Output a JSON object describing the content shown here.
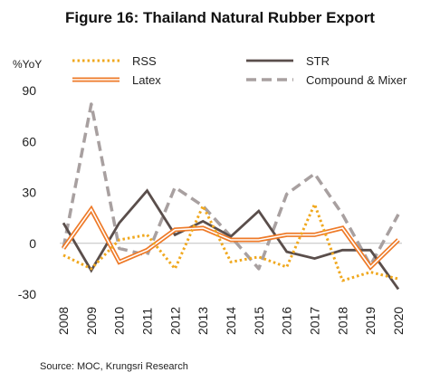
{
  "chart_data": {
    "type": "line",
    "title": "Figure 16: Thailand Natural Rubber Export",
    "ylabel": "%YoY",
    "xlabel": "",
    "source": "Source: MOC, Krungsri Research",
    "ylim": [
      -30,
      90
    ],
    "yticks": [
      -30,
      0,
      30,
      60,
      90
    ],
    "grid": false,
    "legend_position": "top",
    "categories": [
      "2008",
      "2009",
      "2010",
      "2011",
      "2012",
      "2013",
      "2014",
      "2015",
      "2016",
      "2017",
      "2018",
      "2019",
      "2020"
    ],
    "series": [
      {
        "name": "RSS",
        "style": "dotted",
        "color": "#F0A81E",
        "values": [
          -7,
          -15,
          2,
          5,
          -15,
          22,
          -11,
          -8,
          -14,
          23,
          -22,
          -17,
          -21
        ]
      },
      {
        "name": "STR",
        "style": "solid",
        "color": "#5A4E4B",
        "values": [
          12,
          -16,
          12,
          31,
          5,
          13,
          4,
          19,
          -5,
          -9,
          -4,
          -4,
          -27
        ]
      },
      {
        "name": "Latex",
        "style": "double",
        "color": "#EE7A28",
        "values": [
          -3,
          20,
          -11,
          -4,
          8,
          9,
          2,
          2,
          5,
          5,
          9,
          -14,
          2
        ]
      },
      {
        "name": "Compound & Mixer",
        "style": "dashed",
        "color": "#A8A0A0",
        "values": [
          -3,
          82,
          -3,
          -7,
          33,
          22,
          4,
          -15,
          29,
          41,
          17,
          -13,
          17
        ]
      }
    ]
  }
}
